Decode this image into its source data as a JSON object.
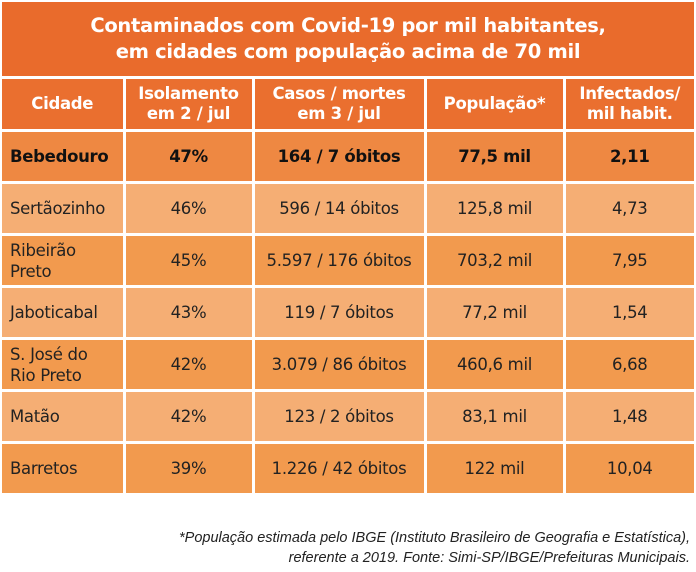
{
  "chart_data": {
    "type": "table",
    "title_lines": [
      "Contaminados com Covid-19 por mil habitantes,",
      "em cidades com população acima de 70 mil"
    ],
    "columns": [
      [
        "Cidade"
      ],
      [
        "Isolamento",
        "em 2 / jul"
      ],
      [
        "Casos / mortes",
        "em 3 / jul"
      ],
      [
        "População*"
      ],
      [
        "Infectados/",
        "mil habit."
      ]
    ],
    "rows": [
      {
        "city": [
          "Bebedouro"
        ],
        "isolamento": "47%",
        "casos": "164 / 7 óbitos",
        "populacao": "77,5 mil",
        "infectados": "2,11",
        "highlight": true
      },
      {
        "city": [
          "Sertãozinho"
        ],
        "isolamento": "46%",
        "casos": "596 / 14 óbitos",
        "populacao": "125,8 mil",
        "infectados": "4,73"
      },
      {
        "city": [
          "Ribeirão",
          "Preto"
        ],
        "isolamento": "45%",
        "casos": "5.597 / 176 óbitos",
        "populacao": "703,2 mil",
        "infectados": "7,95"
      },
      {
        "city": [
          "Jaboticabal"
        ],
        "isolamento": "43%",
        "casos": "119 / 7 óbitos",
        "populacao": "77,2 mil",
        "infectados": "1,54"
      },
      {
        "city": [
          "S. José do",
          "Rio Preto"
        ],
        "isolamento": "42%",
        "casos": "3.079 / 86 óbitos",
        "populacao": "460,6 mil",
        "infectados": "6,68"
      },
      {
        "city": [
          "Matão"
        ],
        "isolamento": "42%",
        "casos": "123 / 2 óbitos",
        "populacao": "83,1 mil",
        "infectados": "1,48"
      },
      {
        "city": [
          "Barretos"
        ],
        "isolamento": "39%",
        "casos": "1.226 / 42 óbitos",
        "populacao": "122 mil",
        "infectados": "10,04"
      }
    ],
    "footnote_lines": [
      "*População estimada pelo IBGE (Instituto Brasileiro de Geografia e Estatística),",
      "referente a 2019. Fonte: Simi-SP/IBGE/Prefeituras Municipais."
    ],
    "colors": {
      "title_bg": "#E96B2C",
      "header_bg": "#EA6F2F",
      "highlight_row": "#EE8842",
      "light_row": "#F5AE74",
      "mid_row": "#F29A4E"
    }
  }
}
